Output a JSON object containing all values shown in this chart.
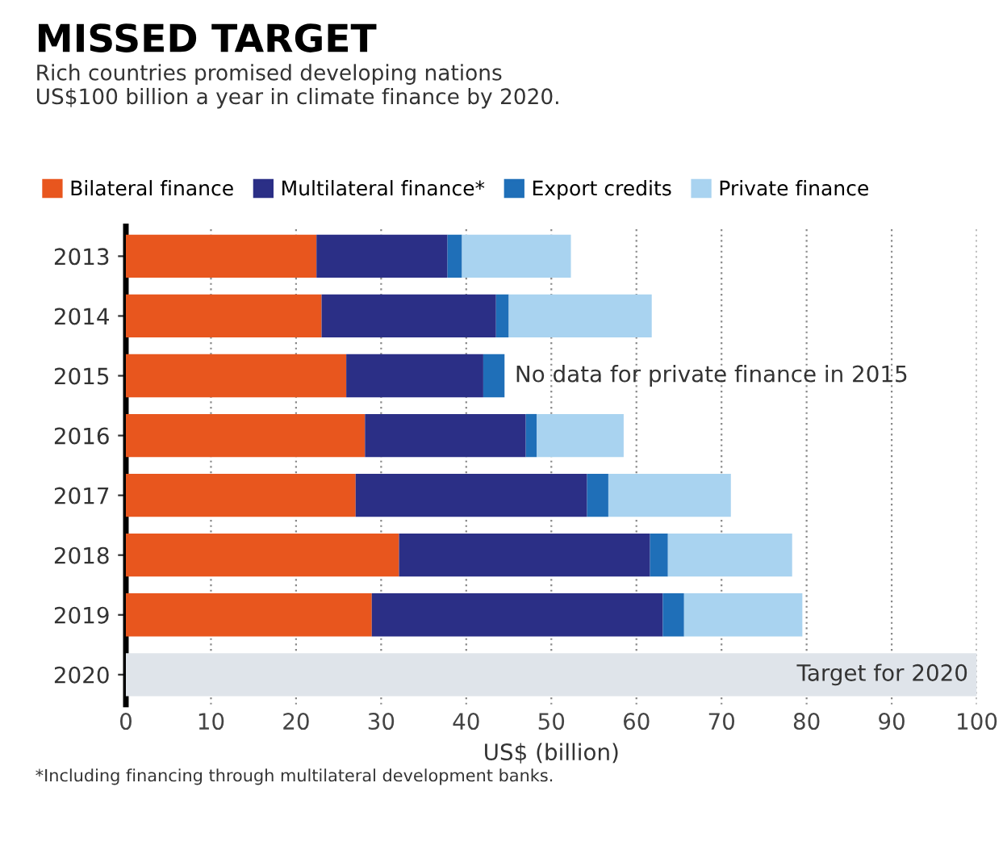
{
  "chart_data": {
    "type": "bar",
    "orientation": "horizontal",
    "stacked": true,
    "title": "MISSED TARGET",
    "subtitle": "Rich countries promised developing nations\nUS$100 billion a year in climate finance by 2020.",
    "xlabel": "US$ (billion)",
    "categories": [
      "2013",
      "2014",
      "2015",
      "2016",
      "2017",
      "2018",
      "2019",
      "2020"
    ],
    "series": [
      {
        "name": "Bilateral finance",
        "color": "#e8561e",
        "values": [
          22.4,
          23.0,
          25.9,
          28.1,
          27.0,
          32.1,
          28.9,
          null
        ]
      },
      {
        "name": "Multilateral finance*",
        "color": "#2b2f86",
        "values": [
          15.4,
          20.5,
          16.1,
          18.9,
          27.2,
          29.5,
          34.2,
          null
        ]
      },
      {
        "name": "Export credits",
        "color": "#1f6fb8",
        "values": [
          1.7,
          1.5,
          2.5,
          1.3,
          2.5,
          2.1,
          2.5,
          null
        ]
      },
      {
        "name": "Private finance",
        "color": "#a9d3f0",
        "values": [
          12.8,
          16.8,
          null,
          10.2,
          14.4,
          14.6,
          13.9,
          null
        ]
      },
      {
        "color": "#dfe4ea",
        "values": [
          null,
          null,
          null,
          null,
          null,
          null,
          null,
          100
        ]
      }
    ],
    "xlim": [
      0,
      100
    ],
    "xticks": [
      0,
      10,
      20,
      30,
      40,
      50,
      60,
      70,
      80,
      90,
      100
    ],
    "grid": "x",
    "legend": "top left",
    "annotations": [
      "No data for private finance in 2015",
      {
        "text": "Target for 2020",
        "x": 100,
        "y": "2020"
      },
      "*Including financing through multilateral development banks."
    ]
  }
}
